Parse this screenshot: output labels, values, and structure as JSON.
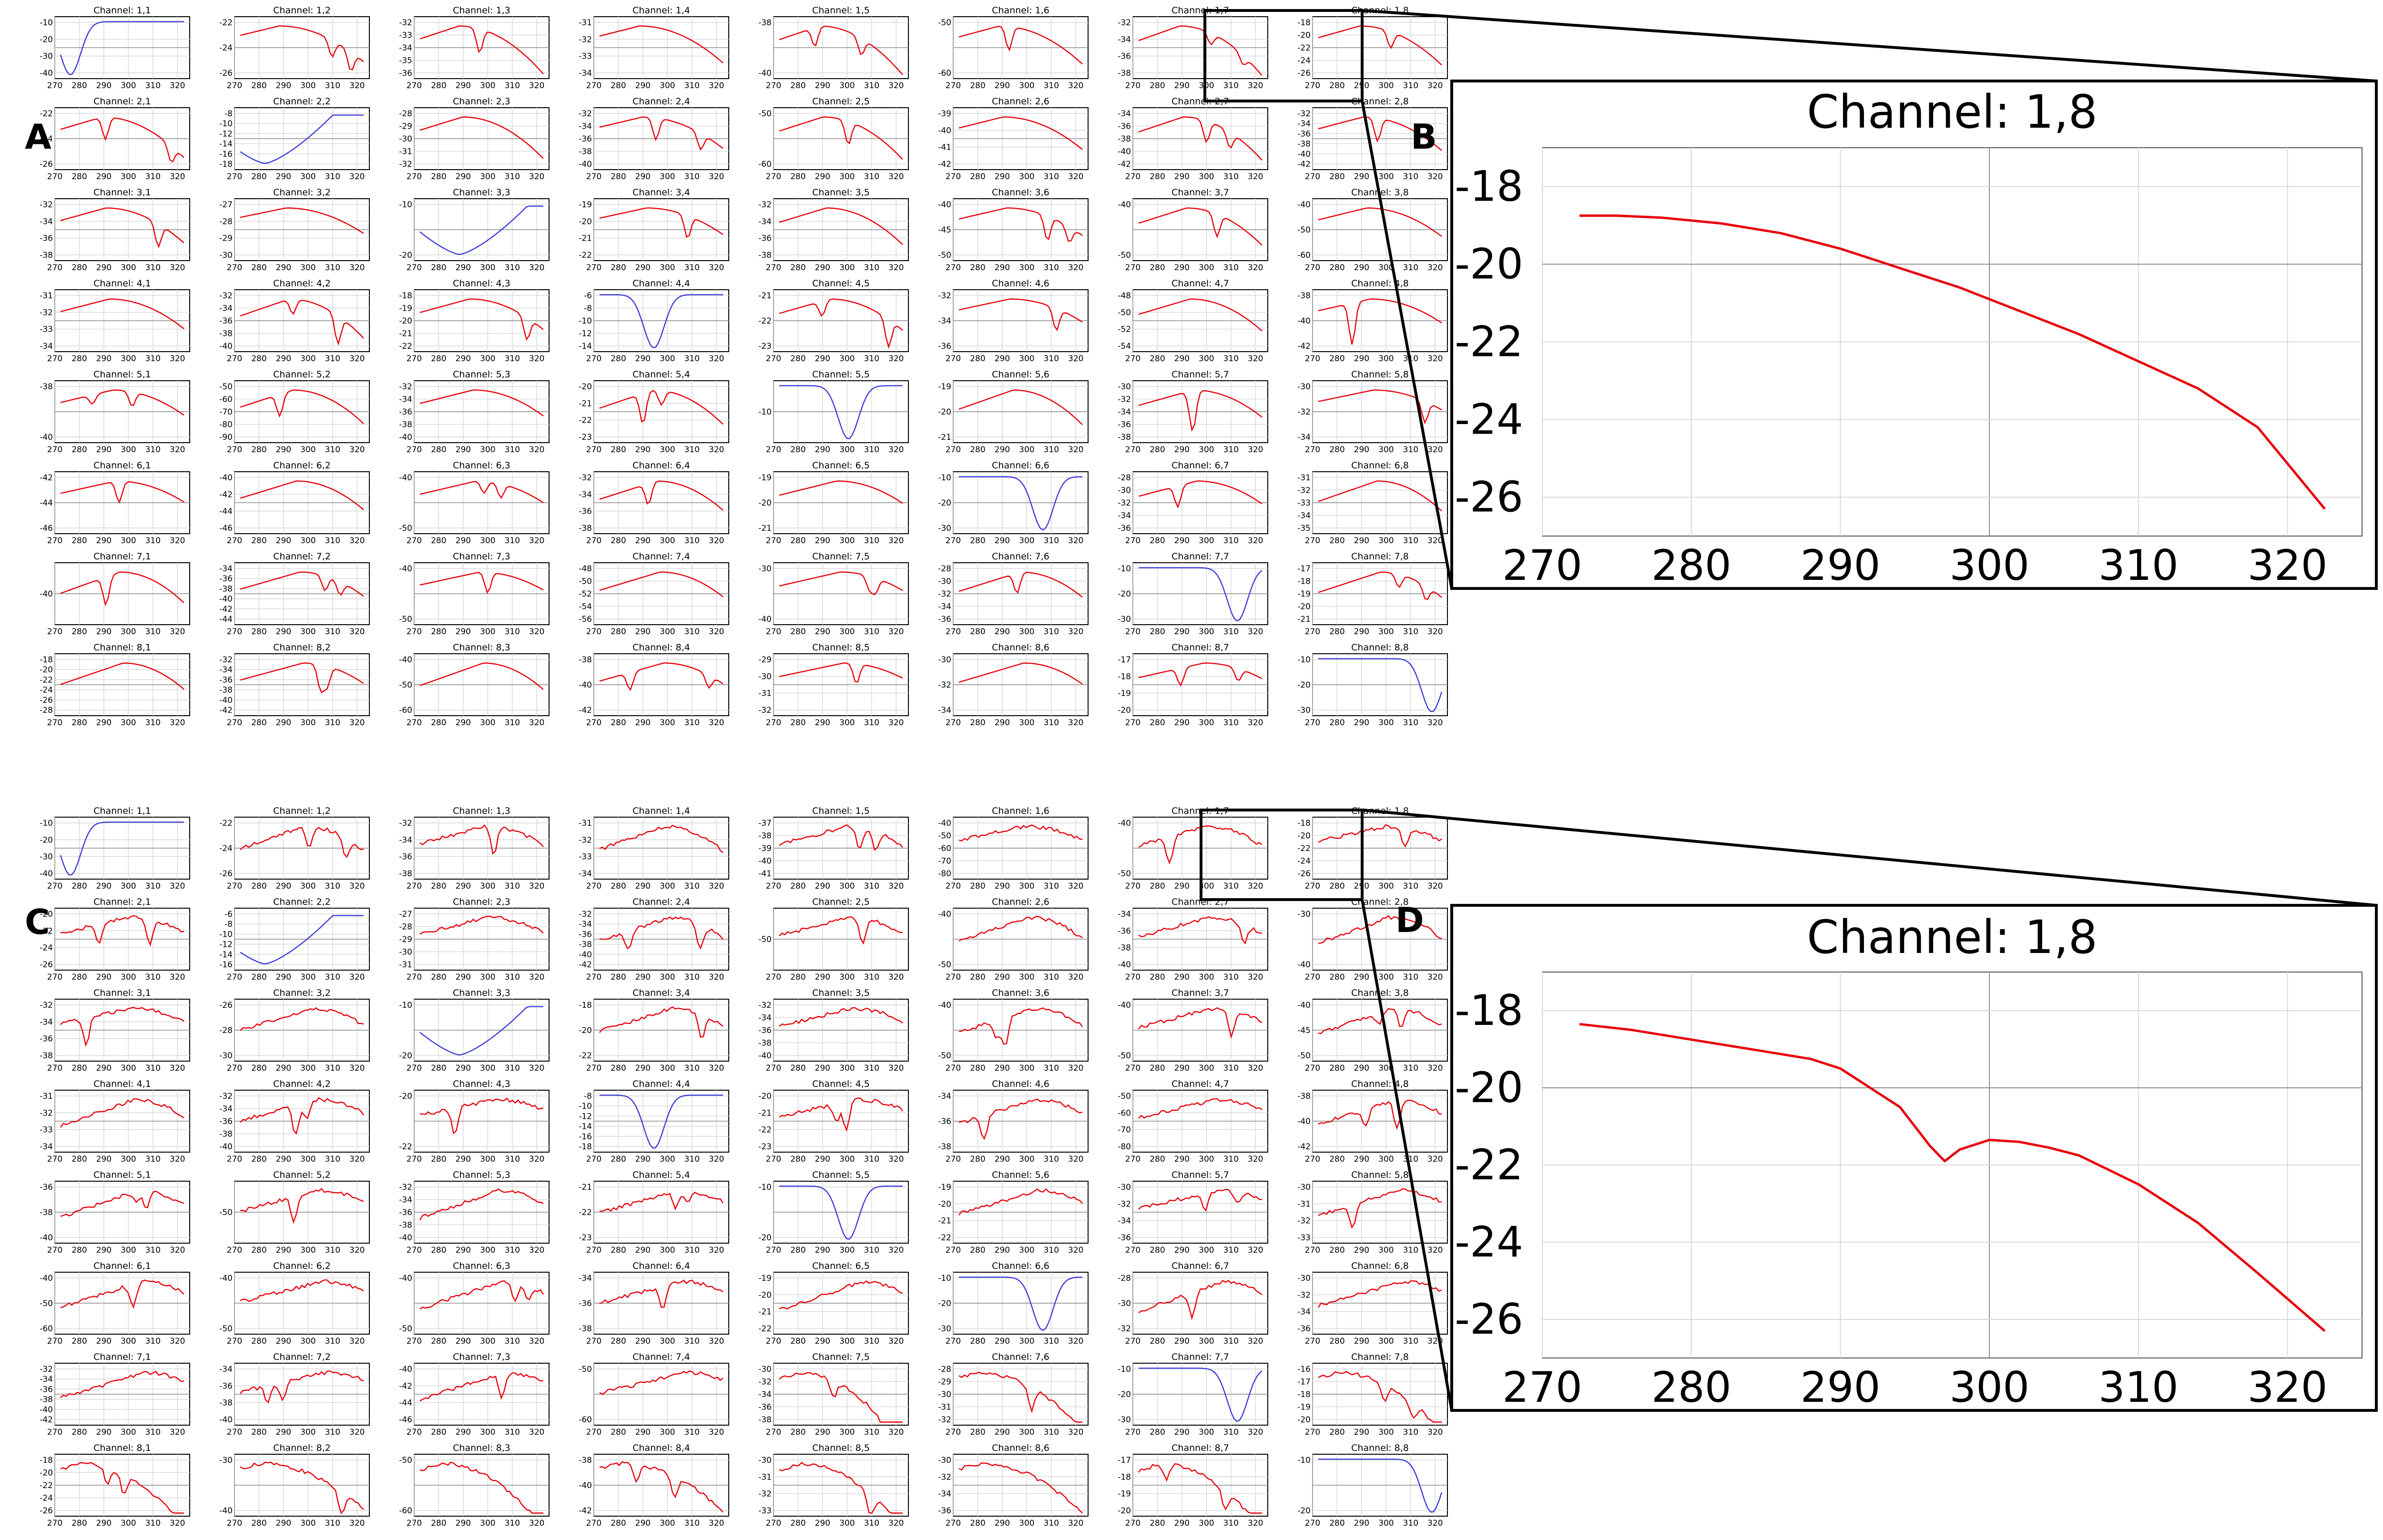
{
  "panel_labels": {
    "A": "A",
    "B": "B",
    "C": "C",
    "D": "D"
  },
  "title_prefix": "Channel: ",
  "zoom_title": "Channel: 1,8",
  "x_ticks": [
    270,
    280,
    290,
    300,
    310,
    320
  ],
  "colors": {
    "offdiag": "#e8000b",
    "diag": "#3b3bdc",
    "grid": "#d9d9d9",
    "axis": "#000000",
    "midline": "#8c8c8c"
  },
  "chart_data": [
    {
      "id": "A",
      "type": "line",
      "description_free": true,
      "grid_size": [
        8,
        8
      ],
      "x_range": [
        270,
        325
      ],
      "y_ticks": [
        [
          [
            -10,
            -20,
            -30,
            -40
          ],
          [
            -22,
            -24,
            -26
          ],
          [
            -32,
            -33,
            -34,
            -35,
            -36
          ],
          [
            -31,
            -32,
            -33,
            -34
          ],
          [
            -38,
            -40
          ],
          [
            -50,
            -60
          ],
          [
            -32,
            -34,
            -36,
            -38
          ],
          [
            -18,
            -20,
            -22,
            -24,
            -26
          ]
        ],
        [
          [
            -22,
            -24,
            -26
          ],
          [
            -8,
            -10,
            -12,
            -14,
            -16,
            -18
          ],
          [
            -28,
            -29,
            -30,
            -31,
            -32
          ],
          [
            -32,
            -34,
            -36,
            -38,
            -40
          ],
          [
            -50,
            -60
          ],
          [
            -39,
            -40,
            -41,
            -42
          ],
          [
            -34,
            -36,
            -38,
            -40,
            -42
          ],
          [
            -32,
            -34,
            -36,
            -38,
            -40,
            -42
          ]
        ],
        [
          [
            -32,
            -34,
            -36,
            -38
          ],
          [
            -27,
            -28,
            -29,
            -30
          ],
          [
            -10,
            -20
          ],
          [
            -19,
            -20,
            -21,
            -22
          ],
          [
            -32,
            -34,
            -36,
            -38
          ],
          [
            -40,
            -45,
            -50
          ],
          [
            -40,
            -50
          ],
          [
            -40,
            -50,
            -60
          ]
        ],
        [
          [
            -31,
            -32,
            -33,
            -34
          ],
          [
            -32,
            -34,
            -36,
            -38,
            -40
          ],
          [
            -18,
            -19,
            -20,
            -21,
            -22
          ],
          [
            -6,
            -8,
            -10,
            -12,
            -14
          ],
          [
            -21,
            -22,
            -23
          ],
          [
            -32,
            -34,
            -36
          ],
          [
            -48,
            -50,
            -52,
            -54
          ],
          [
            -38,
            -40,
            -42
          ]
        ],
        [
          [
            -38,
            -40
          ],
          [
            -50,
            -60,
            -70,
            -80,
            -90
          ],
          [
            -32,
            -34,
            -36,
            -38,
            -40
          ],
          [
            -20,
            -21,
            -22,
            -23
          ],
          [
            -10
          ],
          [
            -19,
            -20,
            -21
          ],
          [
            -30,
            -32,
            -34,
            -36,
            -38
          ],
          [
            -30,
            -32,
            -34
          ]
        ],
        [
          [
            -42,
            -44,
            -46
          ],
          [
            -40,
            -42,
            -44,
            -46
          ],
          [
            -40,
            -50
          ],
          [
            -32,
            -34,
            -36,
            -38
          ],
          [
            -19,
            -20,
            -21
          ],
          [
            -10,
            -20,
            -30
          ],
          [
            -28,
            -30,
            -32,
            -34,
            -36
          ],
          [
            -31,
            -32,
            -33,
            -34,
            -35
          ]
        ],
        [
          [
            -40
          ],
          [
            -34,
            -36,
            -38,
            -40,
            -42,
            -44
          ],
          [
            -40,
            -50
          ],
          [
            -48,
            -50,
            -52,
            -54,
            -56
          ],
          [
            -30,
            -40
          ],
          [
            -28,
            -30,
            -32,
            -34,
            -36
          ],
          [
            -10,
            -20,
            -30
          ],
          [
            -17,
            -18,
            -19,
            -20,
            -21
          ]
        ],
        [
          [
            -18,
            -20,
            -22,
            -24,
            -26,
            -28
          ],
          [
            -32,
            -34,
            -36,
            -38,
            -40,
            -42
          ],
          [
            -40,
            -50,
            -60
          ],
          [
            -38,
            -40,
            -42
          ],
          [
            -29,
            -30,
            -31,
            -32
          ],
          [
            -30,
            -32,
            -34
          ],
          [
            -17,
            -18,
            -19,
            -20
          ],
          [
            -10,
            -20,
            -30
          ]
        ]
      ],
      "zoom": {
        "title": "Channel: 1,8",
        "x_range": [
          270,
          325
        ],
        "y_range": [
          -27,
          -17
        ],
        "y_ticks": [
          -18,
          -20,
          -22,
          -24,
          -26
        ],
        "x": [
          272.5,
          275,
          278,
          282,
          286,
          290,
          294,
          298,
          302,
          306,
          310,
          314,
          318,
          322.5
        ],
        "y": [
          -18.75,
          -18.75,
          -18.8,
          -18.95,
          -19.2,
          -19.6,
          -20.1,
          -20.6,
          -21.2,
          -21.8,
          -22.5,
          -23.2,
          -24.2,
          -26.3
        ]
      }
    },
    {
      "id": "C",
      "type": "line",
      "grid_size": [
        8,
        8
      ],
      "x_range": [
        270,
        325
      ],
      "y_ticks": [
        [
          [
            -10,
            -20,
            -30,
            -40
          ],
          [
            -22,
            -24,
            -26
          ],
          [
            -32,
            -34,
            -36,
            -38
          ],
          [
            -31,
            -32,
            -33,
            -34
          ],
          [
            -37,
            -38,
            -39,
            -40,
            -41
          ],
          [
            -40,
            -50,
            -60,
            -70,
            -80
          ],
          [
            -40,
            -50
          ],
          [
            -18,
            -20,
            -22,
            -24,
            -26
          ]
        ],
        [
          [
            -20,
            -22,
            -24,
            -26
          ],
          [
            -6,
            -8,
            -10,
            -12,
            -14,
            -16
          ],
          [
            -27,
            -28,
            -29,
            -30,
            -31
          ],
          [
            -32,
            -34,
            -36,
            -38,
            -40,
            -42
          ],
          [
            -50
          ],
          [
            -40,
            -50
          ],
          [
            -34,
            -36,
            -38,
            -40
          ],
          [
            -30,
            -40
          ]
        ],
        [
          [
            -32,
            -34,
            -36,
            -38
          ],
          [
            -26,
            -28,
            -30
          ],
          [
            -10,
            -20
          ],
          [
            -18,
            -20,
            -22
          ],
          [
            -32,
            -34,
            -36,
            -38,
            -40
          ],
          [
            -40,
            -50
          ],
          [
            -40,
            -50
          ],
          [
            -40,
            -45,
            -50
          ]
        ],
        [
          [
            -31,
            -32,
            -33,
            -34
          ],
          [
            -32,
            -34,
            -36,
            -38,
            -40
          ],
          [
            -20,
            -22
          ],
          [
            -8,
            -10,
            -12,
            -14,
            -16,
            -18
          ],
          [
            -20,
            -21,
            -22,
            -23
          ],
          [
            -34,
            -36,
            -38
          ],
          [
            -50,
            -60,
            -70,
            -80
          ],
          [
            -38,
            -40,
            -42
          ]
        ],
        [
          [
            -36,
            -38,
            -40
          ],
          [
            -50
          ],
          [
            -32,
            -34,
            -36,
            -38,
            -40
          ],
          [
            -21,
            -22,
            -23
          ],
          [
            -10,
            -20
          ],
          [
            -19,
            -20,
            -21,
            -22
          ],
          [
            -30,
            -32,
            -34,
            -36
          ],
          [
            -30,
            -31,
            -32,
            -33
          ]
        ],
        [
          [
            -40,
            -50,
            -60
          ],
          [
            -40,
            -50
          ],
          [
            -40,
            -50
          ],
          [
            -34,
            -36,
            -38
          ],
          [
            -19,
            -20,
            -21,
            -22
          ],
          [
            -10,
            -20,
            -30
          ],
          [
            -28,
            -30,
            -32
          ],
          [
            -30,
            -32,
            -34,
            -36
          ]
        ],
        [
          [
            -32,
            -34,
            -36,
            -38,
            -40,
            -42
          ],
          [
            -34,
            -36,
            -38,
            -40
          ],
          [
            -40,
            -42,
            -44,
            -46
          ],
          [
            -50,
            -60
          ],
          [
            -30,
            -32,
            -34,
            -36,
            -38
          ],
          [
            -28,
            -29,
            -30,
            -31,
            -32
          ],
          [
            -10,
            -20,
            -30
          ],
          [
            -16,
            -17,
            -18,
            -19,
            -20
          ]
        ],
        [
          [
            -18,
            -20,
            -22,
            -24,
            -26
          ],
          [
            -30,
            -40
          ],
          [
            -50,
            -60
          ],
          [
            -38,
            -40,
            -42
          ],
          [
            -30,
            -31,
            -32,
            -33
          ],
          [
            -30,
            -32,
            -34,
            -36
          ],
          [
            -17,
            -18,
            -19,
            -20
          ],
          [
            -10,
            -20
          ]
        ]
      ],
      "zoom": {
        "title": "Channel: 1,8",
        "x_range": [
          270,
          325
        ],
        "y_range": [
          -27,
          -17
        ],
        "y_ticks": [
          -18,
          -20,
          -22,
          -24,
          -26
        ],
        "x": [
          272.5,
          276,
          280,
          284,
          288,
          290,
          292,
          294,
          296,
          297,
          298,
          300,
          302,
          304,
          306,
          310,
          314,
          318,
          322.5
        ],
        "y": [
          -18.35,
          -18.5,
          -18.75,
          -19.0,
          -19.25,
          -19.5,
          -20.0,
          -20.5,
          -21.5,
          -21.9,
          -21.6,
          -21.35,
          -21.4,
          -21.55,
          -21.75,
          -22.5,
          -23.5,
          -24.8,
          -26.3
        ]
      }
    }
  ]
}
